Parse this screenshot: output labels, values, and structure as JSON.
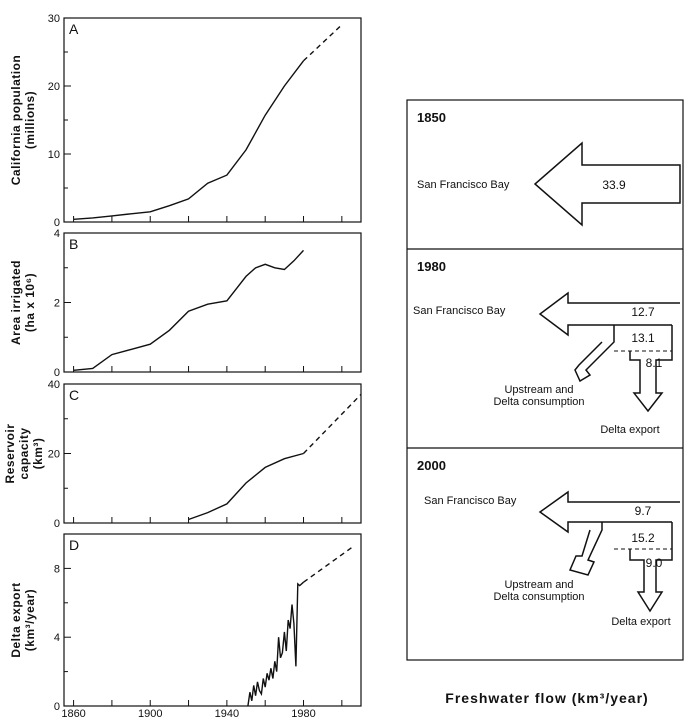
{
  "left_panels": [
    {
      "letter": "A",
      "ylabel_lines": [
        "California population",
        "(millions)"
      ],
      "ylim": [
        0,
        30
      ],
      "yticks": [
        "0",
        "10",
        "20",
        "30"
      ],
      "ytick_values": [
        0,
        10,
        20,
        30
      ]
    },
    {
      "letter": "B",
      "ylabel_lines": [
        "Area irrigated",
        "(ha x 10⁶)"
      ],
      "ylim": [
        0,
        4
      ],
      "yticks": [
        "0",
        "2",
        "4"
      ],
      "ytick_values": [
        0,
        2,
        4
      ]
    },
    {
      "letter": "C",
      "ylabel_lines": [
        "Reservoir",
        "capacity",
        "(km³)"
      ],
      "ylim": [
        0,
        40
      ],
      "yticks": [
        "0",
        "20",
        "40"
      ],
      "ytick_values": [
        0,
        20,
        40
      ]
    },
    {
      "letter": "D",
      "ylabel_lines": [
        "Delta export",
        "(km³/year)"
      ],
      "ylim": [
        0,
        10
      ],
      "yticks": [
        "0",
        "4",
        "8"
      ],
      "ytick_values": [
        0,
        4,
        8
      ]
    }
  ],
  "xaxis": {
    "xlim": [
      1855,
      2010
    ],
    "ticks": [
      "1860",
      "1900",
      "1940",
      "1980"
    ],
    "tick_values": [
      1860,
      1900,
      1940,
      1980
    ]
  },
  "chart_data": [
    {
      "type": "line",
      "panel": "A",
      "x": [
        1860,
        1870,
        1880,
        1890,
        1900,
        1910,
        1920,
        1930,
        1940,
        1950,
        1960,
        1970,
        1980
      ],
      "values": [
        0.4,
        0.6,
        0.9,
        1.2,
        1.5,
        2.4,
        3.4,
        5.7,
        6.9,
        10.6,
        15.7,
        20.0,
        23.7
      ],
      "projection": {
        "x": [
          1980,
          2000
        ],
        "values": [
          23.7,
          29
        ]
      },
      "ylim": [
        0,
        30
      ]
    },
    {
      "type": "line",
      "panel": "B",
      "x": [
        1860,
        1870,
        1880,
        1890,
        1900,
        1910,
        1920,
        1930,
        1940,
        1945,
        1950,
        1955,
        1960,
        1965,
        1970,
        1975,
        1980
      ],
      "values": [
        0.05,
        0.1,
        0.5,
        0.65,
        0.8,
        1.2,
        1.75,
        1.95,
        2.05,
        2.4,
        2.75,
        3.0,
        3.1,
        3.0,
        2.95,
        3.2,
        3.5
      ],
      "ylim": [
        0,
        4
      ]
    },
    {
      "type": "line",
      "panel": "C",
      "x": [
        1920,
        1930,
        1940,
        1950,
        1960,
        1970,
        1980
      ],
      "values": [
        1,
        3,
        5.5,
        11.5,
        16,
        18.5,
        20
      ],
      "projection": {
        "x": [
          1980,
          2010
        ],
        "values": [
          20,
          37
        ]
      },
      "ylim": [
        0,
        40
      ]
    },
    {
      "type": "line",
      "panel": "D",
      "x": [
        1951,
        1952,
        1953,
        1954,
        1955,
        1956,
        1957,
        1958,
        1959,
        1960,
        1961,
        1962,
        1963,
        1964,
        1965,
        1966,
        1967,
        1968,
        1969,
        1970,
        1971,
        1972,
        1973,
        1974,
        1975,
        1976,
        1977,
        1978,
        1980
      ],
      "values": [
        0,
        0.8,
        0.3,
        1.2,
        0.6,
        1.4,
        0.9,
        0.7,
        1.6,
        1.1,
        1.9,
        1.5,
        2.2,
        1.6,
        2.6,
        2.0,
        4.0,
        2.8,
        3.1,
        4.3,
        3.2,
        5.0,
        4.5,
        5.9,
        4.8,
        2.3,
        7.1,
        7.0,
        7.2
      ],
      "projection": {
        "x": [
          1980,
          2005
        ],
        "values": [
          7.2,
          9.2
        ]
      },
      "ylim": [
        0,
        10
      ]
    }
  ],
  "flow": {
    "xlabel": "Freshwater flow (km³/year)",
    "panels": [
      {
        "year": "1850",
        "bay": "San Francisco Bay",
        "bay_flow": "33.9"
      },
      {
        "year": "1980",
        "bay": "San Francisco Bay",
        "bay_flow": "12.7",
        "consumption_flow": "13.1",
        "export_flow": "8.1",
        "consumption_label": [
          "Upstream and",
          "Delta consumption"
        ],
        "export_label": "Delta export"
      },
      {
        "year": "2000",
        "bay": "San Francisco Bay",
        "bay_flow": "9.7",
        "consumption_flow": "15.2",
        "export_flow": "9.0",
        "consumption_label": [
          "Upstream and",
          "Delta consumption"
        ],
        "export_label": "Delta export"
      }
    ]
  }
}
